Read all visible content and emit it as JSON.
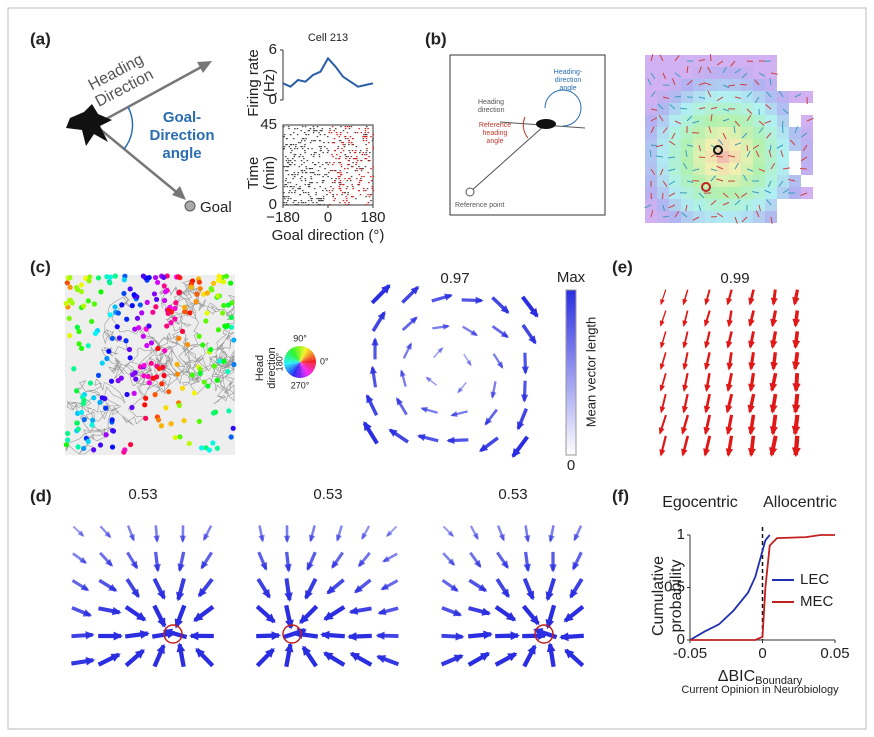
{
  "panels": {
    "a": {
      "label": "(a)",
      "heading_label": [
        "Heading",
        "Direction"
      ],
      "angle_label": [
        "Goal-",
        "Direction",
        "angle"
      ],
      "goal_label": "Goal",
      "chart": {
        "type": "line",
        "title": "Cell 213",
        "ylabel": [
          "Firing rate",
          "(Hz)"
        ],
        "x": [
          -180,
          -150,
          -120,
          -90,
          -60,
          -30,
          0,
          30,
          60,
          90,
          120,
          150,
          180
        ],
        "values": [
          2.0,
          1.6,
          2.4,
          2.2,
          3.0,
          3.4,
          5.0,
          4.0,
          2.8,
          2.2,
          1.6,
          1.8,
          2.0
        ],
        "color": "#2a5fa8",
        "xlim": [
          -180,
          180
        ],
        "ylim": [
          0,
          6
        ],
        "yticks": [
          0,
          6
        ],
        "xticks": [
          {
            "value": -180,
            "label": "−180"
          },
          0,
          180
        ],
        "xlabel": "Goal direction (°)"
      },
      "raster": {
        "ylabel": [
          "Time",
          "(min)"
        ],
        "ylim": [
          0,
          45
        ],
        "yticks": [
          0,
          45
        ]
      }
    },
    "b": {
      "label": "(b)",
      "heading_direction": [
        "Heading",
        "direction"
      ],
      "heading_angle": [
        "Heading-",
        "direction",
        "angle"
      ],
      "reference_angle": [
        "Reference",
        "heading",
        "angle"
      ],
      "reference_point": "Reference point"
    },
    "c": {
      "label": "(c)",
      "head_direction": [
        "Head",
        "direction"
      ],
      "wheel_labels": {
        "top": "90°",
        "right": "0°",
        "left": "180°",
        "bottom": "270°"
      },
      "score": "0.97",
      "colorbar": {
        "max": "Max",
        "min": "0",
        "label": "Mean vector length"
      }
    },
    "e": {
      "label": "(e)",
      "score": "0.99"
    },
    "d": {
      "label": "(d)",
      "scores": [
        "0.53",
        "0.53",
        "0.53"
      ]
    },
    "f": {
      "label": "(f)",
      "headers": [
        "Egocentric",
        "Allocentric"
      ],
      "chart": {
        "type": "line",
        "ylabel": [
          "Cumulative",
          "probability"
        ],
        "xlabel": {
          "main": "ΔBIC",
          "sub": "Boundary"
        },
        "xlim": [
          -0.05,
          0.05
        ],
        "ylim": [
          0,
          1
        ],
        "xticks": [
          -0.05,
          0,
          0.05
        ],
        "yticks": [
          0,
          0.5,
          1
        ],
        "series": [
          {
            "name": "LEC",
            "color": "#1f2fb0",
            "x": [
              -0.05,
              -0.04,
              -0.03,
              -0.02,
              -0.01,
              -0.005,
              0,
              0.002,
              0.005
            ],
            "values": [
              0,
              0.08,
              0.15,
              0.28,
              0.45,
              0.6,
              0.85,
              0.95,
              1
            ]
          },
          {
            "name": "MEC",
            "color": "#c0201e",
            "x": [
              -0.05,
              -0.005,
              0,
              0.002,
              0.005,
              0.01,
              0.03,
              0.04,
              0.05
            ],
            "values": [
              0,
              0,
              0.03,
              0.5,
              0.9,
              0.97,
              0.98,
              1,
              1
            ]
          }
        ]
      }
    }
  },
  "footer": "Current Opinion in Neurobiology"
}
